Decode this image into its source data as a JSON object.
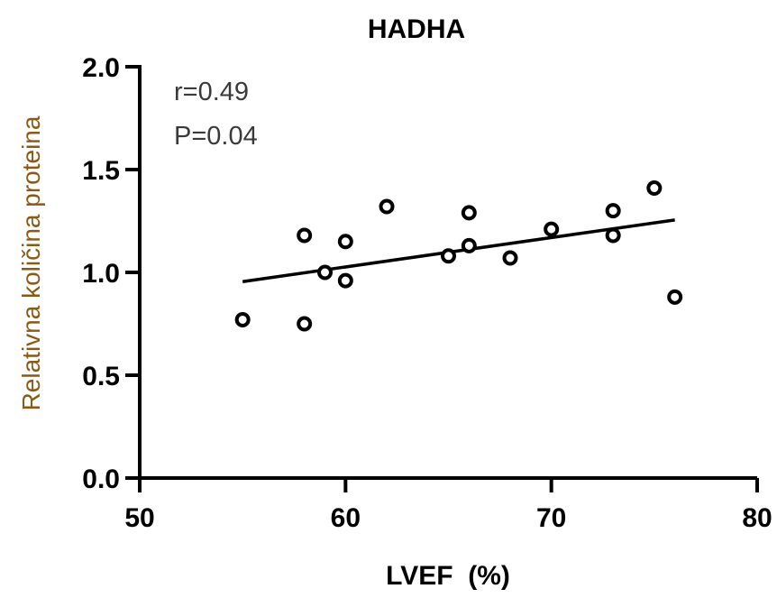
{
  "chart_data": {
    "type": "scatter",
    "title": "HADHA",
    "xlabel": "LVEF  (%)",
    "ylabel": "Relativna količina proteina",
    "xlim": [
      50,
      80
    ],
    "ylim": [
      0.0,
      2.0
    ],
    "x_ticks": [
      "50",
      "60",
      "70",
      "80"
    ],
    "y_ticks": [
      "0.0",
      "0.5",
      "1.0",
      "1.5",
      "2.0"
    ],
    "grid": false,
    "annotations": [
      "r=0.49",
      "P=0.04"
    ],
    "points": [
      {
        "x": 55,
        "y": 0.77
      },
      {
        "x": 58,
        "y": 1.18
      },
      {
        "x": 58,
        "y": 0.75
      },
      {
        "x": 59,
        "y": 1.0
      },
      {
        "x": 60,
        "y": 1.15
      },
      {
        "x": 60,
        "y": 0.96
      },
      {
        "x": 62,
        "y": 1.32
      },
      {
        "x": 65,
        "y": 1.08
      },
      {
        "x": 66,
        "y": 1.29
      },
      {
        "x": 66,
        "y": 1.13
      },
      {
        "x": 68,
        "y": 1.07
      },
      {
        "x": 70,
        "y": 1.21
      },
      {
        "x": 73,
        "y": 1.3
      },
      {
        "x": 73,
        "y": 1.18
      },
      {
        "x": 75,
        "y": 1.41
      },
      {
        "x": 76,
        "y": 0.88
      }
    ],
    "regression_line": {
      "x": [
        55,
        76
      ],
      "y": [
        0.955,
        1.255
      ]
    }
  },
  "colors": {
    "ylabel": "#8a5a14",
    "annotation": "#3a3a3a",
    "axis": "#000000"
  }
}
